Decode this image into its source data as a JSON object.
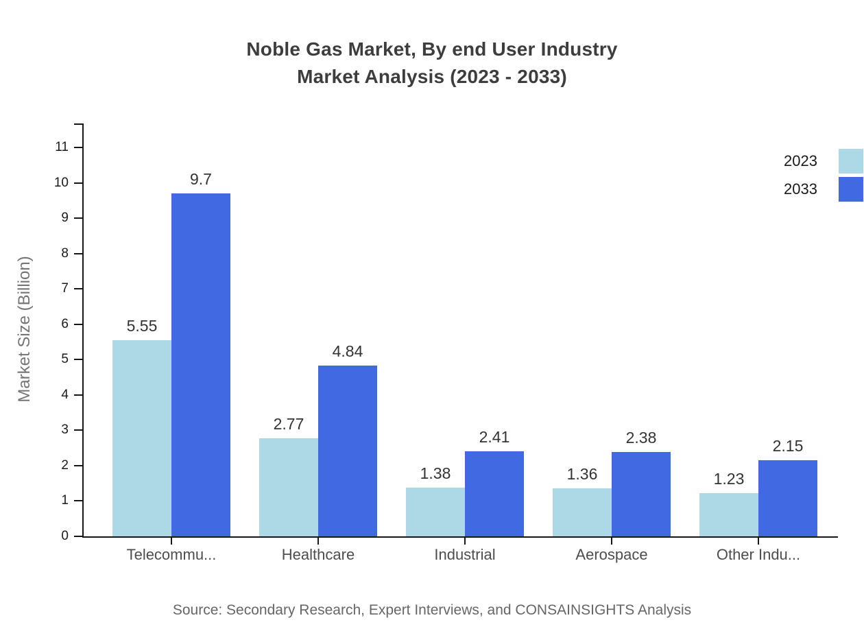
{
  "title": {
    "line1": "Noble Gas Market, By end User Industry",
    "line2": "Market Analysis (2023 - 2033)"
  },
  "source": "Source: Secondary Research, Expert Interviews, and CONSAINSIGHTS Analysis",
  "legend": {
    "items": [
      {
        "label": "2023",
        "color": "#add8e6"
      },
      {
        "label": "2033",
        "color": "#4169e1"
      }
    ]
  },
  "chart_data": {
    "type": "bar",
    "title": "Noble Gas Market, By end User Industry Market Analysis (2023 - 2033)",
    "categories": [
      "Telecommu...",
      "Healthcare",
      "Industrial",
      "Aerospace",
      "Other Indu..."
    ],
    "series": [
      {
        "name": "2023",
        "color": "#add8e6",
        "values": [
          5.55,
          2.77,
          1.38,
          1.36,
          1.23
        ]
      },
      {
        "name": "2033",
        "color": "#4169e1",
        "values": [
          9.7,
          4.84,
          2.41,
          2.38,
          2.15
        ]
      }
    ],
    "xlabel": "",
    "ylabel": "Market Size (Billion)",
    "ylim": [
      0,
      11
    ],
    "ytick_step": 1,
    "yticks": [
      0,
      1,
      2,
      3,
      4,
      5,
      6,
      7,
      8,
      9,
      10,
      11
    ],
    "grid": false,
    "legend_position": "top-right",
    "value_label_format": "as-is"
  }
}
